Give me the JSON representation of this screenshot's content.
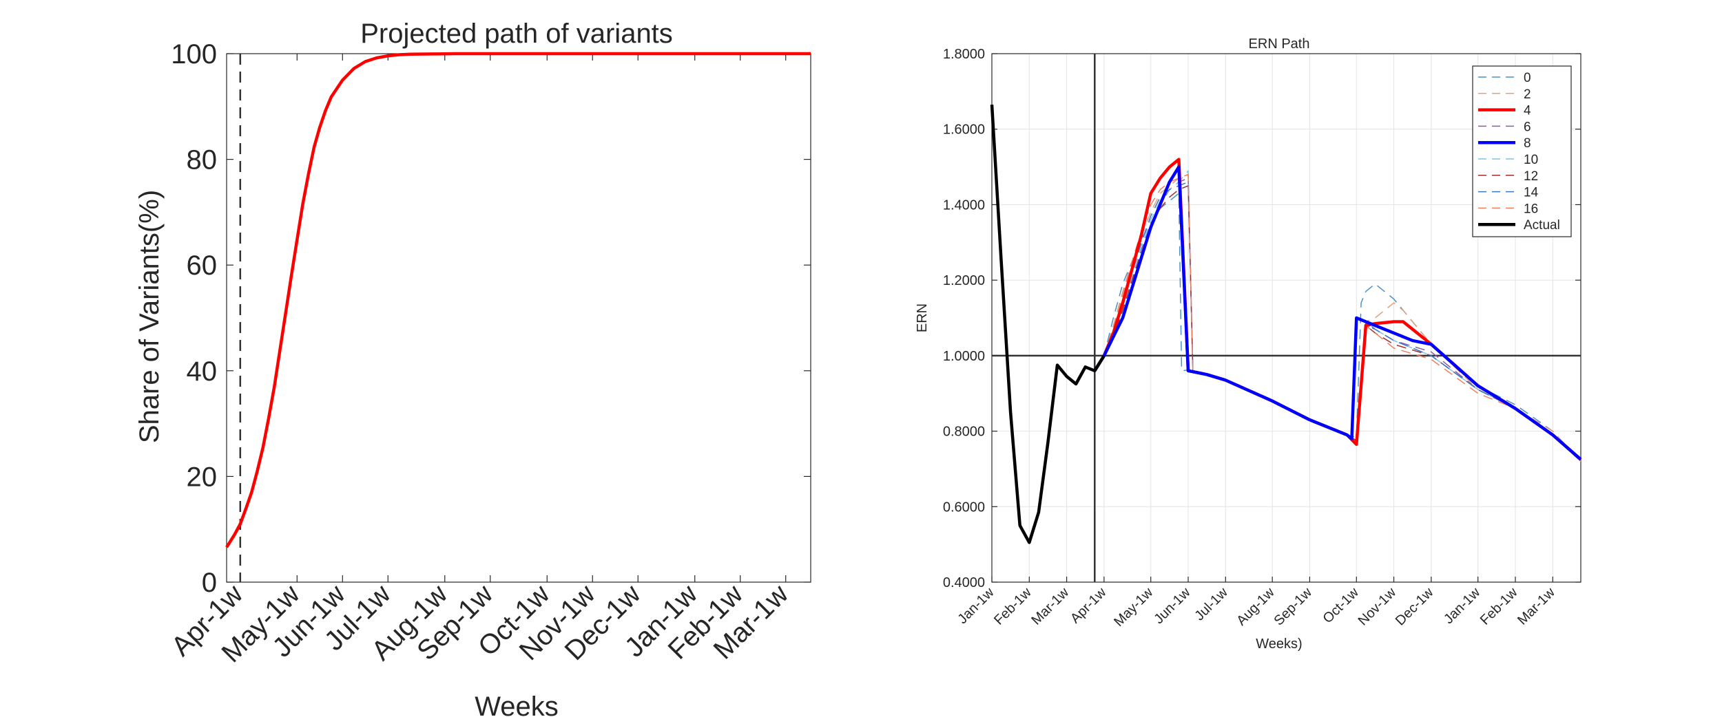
{
  "chart_data": [
    {
      "type": "line",
      "title": "Projected path of variants",
      "xlabel": "Weeks",
      "ylabel": "Share of Variants(%)",
      "ylim": [
        0,
        100
      ],
      "yticks": [
        0,
        20,
        40,
        60,
        80,
        100
      ],
      "xlim": [
        -0.2,
        51.2
      ],
      "xticks": [
        {
          "pos": 1,
          "label": "Apr-1w"
        },
        {
          "pos": 6,
          "label": "May-1w"
        },
        {
          "pos": 10,
          "label": "Jun-1w"
        },
        {
          "pos": 14,
          "label": "Jul-1w"
        },
        {
          "pos": 19,
          "label": "Aug-1w"
        },
        {
          "pos": 23,
          "label": "Sep-1w"
        },
        {
          "pos": 28,
          "label": "Oct-1w"
        },
        {
          "pos": 32,
          "label": "Nov-1w"
        },
        {
          "pos": 36,
          "label": "Dec-1w"
        },
        {
          "pos": 41,
          "label": "Jan-1w"
        },
        {
          "pos": 45,
          "label": "Feb-1w"
        },
        {
          "pos": 49,
          "label": "Mar-1w"
        }
      ],
      "grid": false,
      "vline": {
        "x": 1,
        "style": "dashed",
        "color": "#333333"
      },
      "series": [
        {
          "color": "#ff0000",
          "x": [
            -0.2,
            0.5,
            1,
            1.5,
            2,
            2.5,
            3,
            3.5,
            4,
            4.5,
            5,
            5.5,
            6,
            6.5,
            7,
            7.5,
            8,
            8.5,
            9,
            9.5,
            10,
            11,
            12,
            13,
            14,
            15,
            16,
            18,
            20,
            24,
            30,
            40,
            51.2
          ],
          "values": [
            6.6,
            9,
            11,
            13.9,
            17,
            21,
            25.5,
            31,
            37,
            44,
            51,
            58,
            64.8,
            71.5,
            77.2,
            82.3,
            86.1,
            89.2,
            91.8,
            93.4,
            95,
            97.2,
            98.5,
            99.2,
            99.6,
            99.8,
            99.9,
            99.95,
            100,
            100,
            100,
            100,
            100
          ]
        }
      ]
    },
    {
      "type": "line",
      "title": "ERN Path",
      "xlabel": "Weeks)",
      "ylabel": "ERN",
      "ylim": [
        0.4,
        1.8
      ],
      "yticks": [
        0.4,
        0.6,
        0.8,
        1.0,
        1.2,
        1.4,
        1.6,
        1.8
      ],
      "ytick_labels": [
        "0.4000",
        "0.6000",
        "0.8000",
        "1.0000",
        "1.2000",
        "1.4000",
        "1.6000",
        "1.8000"
      ],
      "xlim": [
        0,
        63
      ],
      "xticks": [
        {
          "pos": 0,
          "label": "Jan-1w"
        },
        {
          "pos": 4,
          "label": "Feb-1w"
        },
        {
          "pos": 8,
          "label": "Mar-1w"
        },
        {
          "pos": 12,
          "label": "Apr-1w"
        },
        {
          "pos": 17,
          "label": "May-1w"
        },
        {
          "pos": 21,
          "label": "Jun-1w"
        },
        {
          "pos": 25,
          "label": "Jul-1w"
        },
        {
          "pos": 30,
          "label": "Aug-1w"
        },
        {
          "pos": 34,
          "label": "Sep-1w"
        },
        {
          "pos": 39,
          "label": "Oct-1w"
        },
        {
          "pos": 43,
          "label": "Nov-1w"
        },
        {
          "pos": 47,
          "label": "Dec-1w"
        },
        {
          "pos": 52,
          "label": "Jan-1w"
        },
        {
          "pos": 56,
          "label": "Feb-1w"
        },
        {
          "pos": 60,
          "label": "Mar-1w"
        }
      ],
      "grid": true,
      "hline": {
        "y": 1.0
      },
      "vline": {
        "x": 11
      },
      "legend_position": "top-right",
      "series": [
        {
          "name": "0",
          "color": "#4a90c8",
          "style": "dashed",
          "width": 1,
          "x": [
            11,
            12,
            13,
            14,
            15,
            16,
            17,
            18,
            19,
            20,
            20.3,
            21,
            21.5,
            22,
            23,
            25,
            30,
            34,
            38,
            39,
            39.5,
            40,
            41,
            43,
            47,
            52,
            56,
            60,
            63
          ],
          "values": [
            0.96,
            1.0,
            1.1,
            1.19,
            1.25,
            1.31,
            1.35,
            1.39,
            1.41,
            1.43,
            0.96,
            0.962,
            0.96,
            0.955,
            0.95,
            0.935,
            0.88,
            0.83,
            0.79,
            0.783,
            1.14,
            1.17,
            1.19,
            1.15,
            1.03,
            0.92,
            0.87,
            0.8,
            0.72
          ]
        },
        {
          "name": "2",
          "color": "#e0a080",
          "style": "dashed",
          "width": 1,
          "x": [
            11,
            12,
            13,
            14,
            15,
            16,
            17,
            18,
            19,
            20,
            21,
            21.5,
            22,
            23,
            25,
            30,
            34,
            38,
            39,
            40,
            41,
            42,
            43,
            44,
            47,
            52,
            56,
            60,
            63
          ],
          "values": [
            0.96,
            1.0,
            1.08,
            1.17,
            1.25,
            1.32,
            1.38,
            1.43,
            1.45,
            1.47,
            1.48,
            0.96,
            0.955,
            0.95,
            0.935,
            0.88,
            0.83,
            0.79,
            0.775,
            1.09,
            1.1,
            1.12,
            1.14,
            1.12,
            1.03,
            0.91,
            0.86,
            0.8,
            0.72
          ]
        },
        {
          "name": "4",
          "color": "#ff0000",
          "style": "solid",
          "width": 3,
          "x": [
            11,
            12,
            13,
            14,
            15,
            16,
            17,
            18,
            19,
            20,
            21,
            22,
            23,
            25,
            30,
            34,
            38,
            39,
            40,
            41,
            43,
            44,
            47,
            52,
            56,
            60,
            63
          ],
          "values": [
            0.96,
            1.0,
            1.06,
            1.14,
            1.23,
            1.32,
            1.43,
            1.47,
            1.5,
            1.52,
            0.96,
            0.955,
            0.95,
            0.935,
            0.88,
            0.83,
            0.79,
            0.765,
            1.08,
            1.085,
            1.09,
            1.09,
            1.03,
            0.92,
            0.86,
            0.79,
            0.725
          ]
        },
        {
          "name": "6",
          "color": "#8a5aa8",
          "style": "dashed",
          "width": 1,
          "x": [
            11,
            12,
            13,
            14,
            15,
            16,
            17,
            18,
            19,
            20,
            21,
            21.5,
            22,
            23,
            25,
            30,
            34,
            38,
            39,
            40,
            41,
            43,
            47,
            52,
            56,
            60,
            63
          ],
          "values": [
            0.96,
            1.0,
            1.05,
            1.12,
            1.2,
            1.28,
            1.35,
            1.4,
            1.44,
            1.46,
            1.47,
            0.96,
            0.955,
            0.95,
            0.935,
            0.88,
            0.83,
            0.79,
            0.775,
            1.08,
            1.07,
            1.04,
            1.01,
            0.91,
            0.86,
            0.79,
            0.72
          ]
        },
        {
          "name": "8",
          "color": "#0000ff",
          "style": "solid",
          "width": 3,
          "x": [
            11,
            12,
            13,
            14,
            15,
            16,
            17,
            18,
            19,
            20,
            21,
            22,
            23,
            25,
            30,
            34,
            38,
            38.5,
            39,
            40,
            41,
            42,
            44,
            45,
            47,
            52,
            56,
            60,
            63
          ],
          "values": [
            0.96,
            1.0,
            1.05,
            1.1,
            1.18,
            1.26,
            1.34,
            1.4,
            1.46,
            1.5,
            0.96,
            0.955,
            0.95,
            0.935,
            0.88,
            0.83,
            0.79,
            0.78,
            1.1,
            1.09,
            1.08,
            1.07,
            1.05,
            1.04,
            1.03,
            0.92,
            0.86,
            0.79,
            0.725
          ]
        },
        {
          "name": "10",
          "color": "#7dc4e8",
          "style": "dashed",
          "width": 1,
          "x": [
            11,
            12,
            13,
            14,
            15,
            16,
            17,
            18,
            19,
            20,
            21,
            21.5,
            22,
            23,
            25,
            30,
            34,
            38,
            39,
            40,
            41,
            43,
            47,
            52,
            56,
            60,
            63
          ],
          "values": [
            0.96,
            1.0,
            1.06,
            1.13,
            1.21,
            1.29,
            1.36,
            1.41,
            1.44,
            1.46,
            1.49,
            0.96,
            0.955,
            0.95,
            0.935,
            0.88,
            0.83,
            0.79,
            0.775,
            1.08,
            1.07,
            1.04,
            1.0,
            0.91,
            0.86,
            0.79,
            0.72
          ]
        },
        {
          "name": "12",
          "color": "#a03030",
          "style": "dashed",
          "width": 1,
          "x": [
            11,
            12,
            13,
            14,
            15,
            16,
            17,
            18,
            19,
            20,
            21,
            21.5,
            22,
            23,
            25,
            30,
            34,
            38,
            39,
            40,
            41,
            43,
            47,
            52,
            56,
            60,
            63
          ],
          "values": [
            0.96,
            1.0,
            1.05,
            1.12,
            1.2,
            1.27,
            1.34,
            1.39,
            1.42,
            1.44,
            1.45,
            0.96,
            0.955,
            0.95,
            0.935,
            0.88,
            0.83,
            0.79,
            0.775,
            1.08,
            1.06,
            1.03,
            1.0,
            0.91,
            0.86,
            0.79,
            0.72
          ]
        },
        {
          "name": "14",
          "color": "#3878c8",
          "style": "dashed",
          "width": 1,
          "x": [
            11,
            12,
            13,
            14,
            15,
            16,
            17,
            18,
            19,
            20,
            21,
            21.5,
            22,
            23,
            25,
            30,
            34,
            38,
            39,
            40,
            41,
            43,
            47,
            52,
            56,
            60,
            63
          ],
          "values": [
            0.96,
            1.0,
            1.06,
            1.14,
            1.22,
            1.3,
            1.37,
            1.42,
            1.44,
            1.45,
            1.46,
            0.96,
            0.955,
            0.95,
            0.935,
            0.88,
            0.83,
            0.79,
            0.775,
            1.09,
            1.07,
            1.04,
            1.0,
            0.91,
            0.86,
            0.79,
            0.72
          ]
        },
        {
          "name": "16",
          "color": "#f08060",
          "style": "dashed",
          "width": 1,
          "x": [
            11,
            12,
            13,
            14,
            15,
            16,
            17,
            18,
            19,
            20,
            21,
            21.5,
            22,
            23,
            25,
            30,
            34,
            38,
            39,
            40,
            41,
            43,
            47,
            52,
            56,
            60,
            63
          ],
          "values": [
            0.96,
            1.0,
            1.07,
            1.16,
            1.25,
            1.33,
            1.4,
            1.44,
            1.46,
            1.47,
            1.48,
            0.96,
            0.955,
            0.95,
            0.935,
            0.88,
            0.83,
            0.79,
            0.775,
            1.08,
            1.06,
            1.02,
            0.99,
            0.9,
            0.86,
            0.79,
            0.72
          ]
        },
        {
          "name": "Actual",
          "color": "#000000",
          "style": "solid",
          "width": 3,
          "x": [
            0,
            1,
            2,
            3,
            4,
            5,
            6,
            7,
            8,
            9,
            10,
            11,
            12
          ],
          "values": [
            1.665,
            1.25,
            0.85,
            0.55,
            0.505,
            0.585,
            0.77,
            0.975,
            0.945,
            0.925,
            0.97,
            0.96,
            1.0
          ]
        }
      ]
    }
  ]
}
